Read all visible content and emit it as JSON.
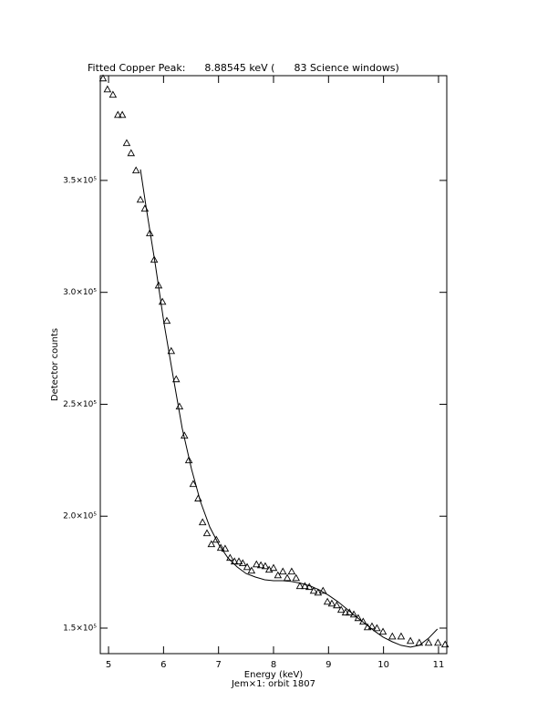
{
  "chart_data": {
    "type": "scatter",
    "title": "Fitted Copper Peak:      8.88545 keV (      83 Science windows)",
    "x_label": "Energy (keV)",
    "y_label": "Detector counts",
    "subtitle": "Jem×1: orbit 1807",
    "xlim": [
      4.85,
      11.15
    ],
    "ylim": [
      138600,
      396800
    ],
    "xticks": [
      5,
      6,
      7,
      8,
      9,
      10,
      11
    ],
    "yticks": [
      {
        "value": 150000,
        "label": "1.5×10⁵"
      },
      {
        "value": 200000,
        "label": "2.0×10⁵"
      },
      {
        "value": 250000,
        "label": "2.5×10⁵"
      },
      {
        "value": 300000,
        "label": "3.0×10⁵"
      },
      {
        "value": 350000,
        "label": "3.5×10⁵"
      }
    ],
    "series": [
      {
        "style": "triangle",
        "color": "#000000",
        "x": [
          4.9,
          4.98,
          5.08,
          5.17,
          5.25,
          5.33,
          5.41,
          5.5,
          5.58,
          5.66,
          5.75,
          5.83,
          5.91,
          5.98,
          6.06,
          6.14,
          6.23,
          6.29,
          6.38,
          6.46,
          6.54,
          6.63,
          6.71,
          6.79,
          6.87,
          6.96,
          7.04,
          7.12,
          7.21,
          7.29,
          7.37,
          7.44,
          7.52,
          7.6,
          7.69,
          7.77,
          7.85,
          7.92,
          8.0,
          8.08,
          8.17,
          8.25,
          8.33,
          8.41,
          8.48,
          8.57,
          8.65,
          8.73,
          8.81,
          8.9,
          8.98,
          9.06,
          9.15,
          9.23,
          9.31,
          9.38,
          9.46,
          9.54,
          9.63,
          9.71,
          9.79,
          9.88,
          9.99,
          10.16,
          10.32,
          10.49,
          10.65,
          10.82,
          10.99,
          11.12
        ],
        "values": [
          395600,
          390700,
          388300,
          379300,
          379300,
          366700,
          362200,
          354500,
          341400,
          337400,
          326400,
          314600,
          303100,
          295800,
          287300,
          273800,
          261200,
          249000,
          236000,
          225000,
          214400,
          207900,
          197300,
          192400,
          187500,
          189500,
          185900,
          185500,
          181400,
          179800,
          179800,
          179000,
          177300,
          175700,
          178500,
          178100,
          177700,
          176100,
          176900,
          173600,
          175300,
          172400,
          175300,
          172400,
          168800,
          168800,
          168400,
          166700,
          165900,
          166700,
          161800,
          161000,
          160200,
          158200,
          157000,
          157000,
          156100,
          154500,
          152900,
          150400,
          150800,
          150000,
          148400,
          146300,
          146300,
          144300,
          143500,
          143500,
          143500,
          142700
        ]
      },
      {
        "style": "line",
        "color": "#000000",
        "x": [
          5.58,
          5.68,
          5.85,
          6.01,
          6.18,
          6.34,
          6.51,
          6.67,
          6.84,
          7.01,
          7.17,
          7.34,
          7.5,
          7.67,
          7.84,
          8.0,
          8.17,
          8.33,
          8.5,
          8.67,
          8.83,
          9.0,
          9.17,
          9.33,
          9.49,
          9.66,
          9.83,
          9.99,
          10.16,
          10.32,
          10.49,
          10.65,
          10.82,
          10.98
        ],
        "values": [
          354900,
          338600,
          312500,
          286000,
          261600,
          239200,
          220900,
          206600,
          195200,
          187100,
          181400,
          177300,
          174400,
          172800,
          171600,
          171200,
          171200,
          170800,
          170000,
          168800,
          167100,
          164700,
          161800,
          158600,
          155300,
          152100,
          148800,
          146000,
          143900,
          142300,
          141500,
          142300,
          145500,
          149600
        ]
      }
    ]
  }
}
